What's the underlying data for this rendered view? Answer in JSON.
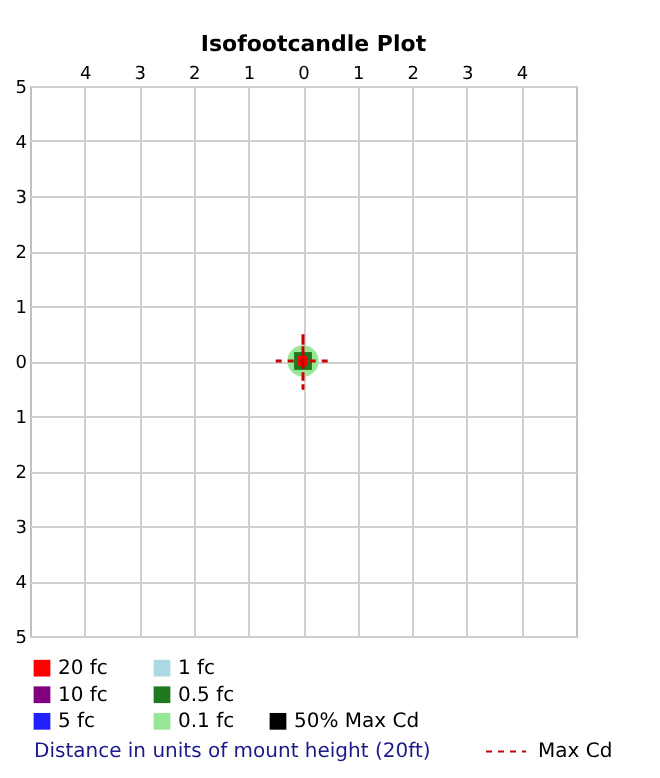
{
  "chart_data": {
    "type": "line",
    "title": "Isofootcandle Plot",
    "xlabel": "Distance in units of mount height (20ft)",
    "xlim": [
      -5,
      5
    ],
    "ylim": [
      -5,
      5
    ],
    "xticks": [
      {
        "value": -4,
        "label": "4"
      },
      {
        "value": -3,
        "label": "3"
      },
      {
        "value": -2,
        "label": "2"
      },
      {
        "value": -1,
        "label": "1"
      },
      0,
      1,
      2,
      3,
      4
    ],
    "yticks": [
      {
        "value": -5,
        "label": "5"
      },
      {
        "value": -4,
        "label": "4"
      },
      {
        "value": -3,
        "label": "3"
      },
      {
        "value": -2,
        "label": "2"
      },
      {
        "value": -1,
        "label": "1"
      },
      0,
      1,
      2,
      3,
      4,
      5
    ],
    "grid": true,
    "legend": "bottom",
    "series": [
      {
        "name": "20 fc",
        "type": "scatter",
        "marker": "square",
        "color": "#ff0000",
        "x": [
          0
        ],
        "values": [
          0
        ]
      },
      {
        "name": "10 fc",
        "color": "#800080"
      },
      {
        "name": "5 fc",
        "color": "#2020ff"
      },
      {
        "name": "1 fc",
        "color": "#add8e6"
      },
      {
        "name": "0.5 fc",
        "type": "scatter",
        "marker": "square",
        "color": "#1f7a1f",
        "x": [
          0
        ],
        "values": [
          0
        ]
      },
      {
        "name": "0.1 fc",
        "type": "scatter",
        "marker": "circle",
        "color": "#98e698",
        "x": [
          0
        ],
        "values": [
          0
        ]
      },
      {
        "name": "50% Max Cd",
        "color": "#000000"
      },
      {
        "name": "Max Cd",
        "color": "#cc0000",
        "line_style": "dashed",
        "x": [
          -0.5,
          0,
          0,
          0,
          0,
          0.5
        ],
        "values": [
          0,
          0,
          0.5,
          -0.5,
          0,
          0
        ]
      }
    ]
  }
}
